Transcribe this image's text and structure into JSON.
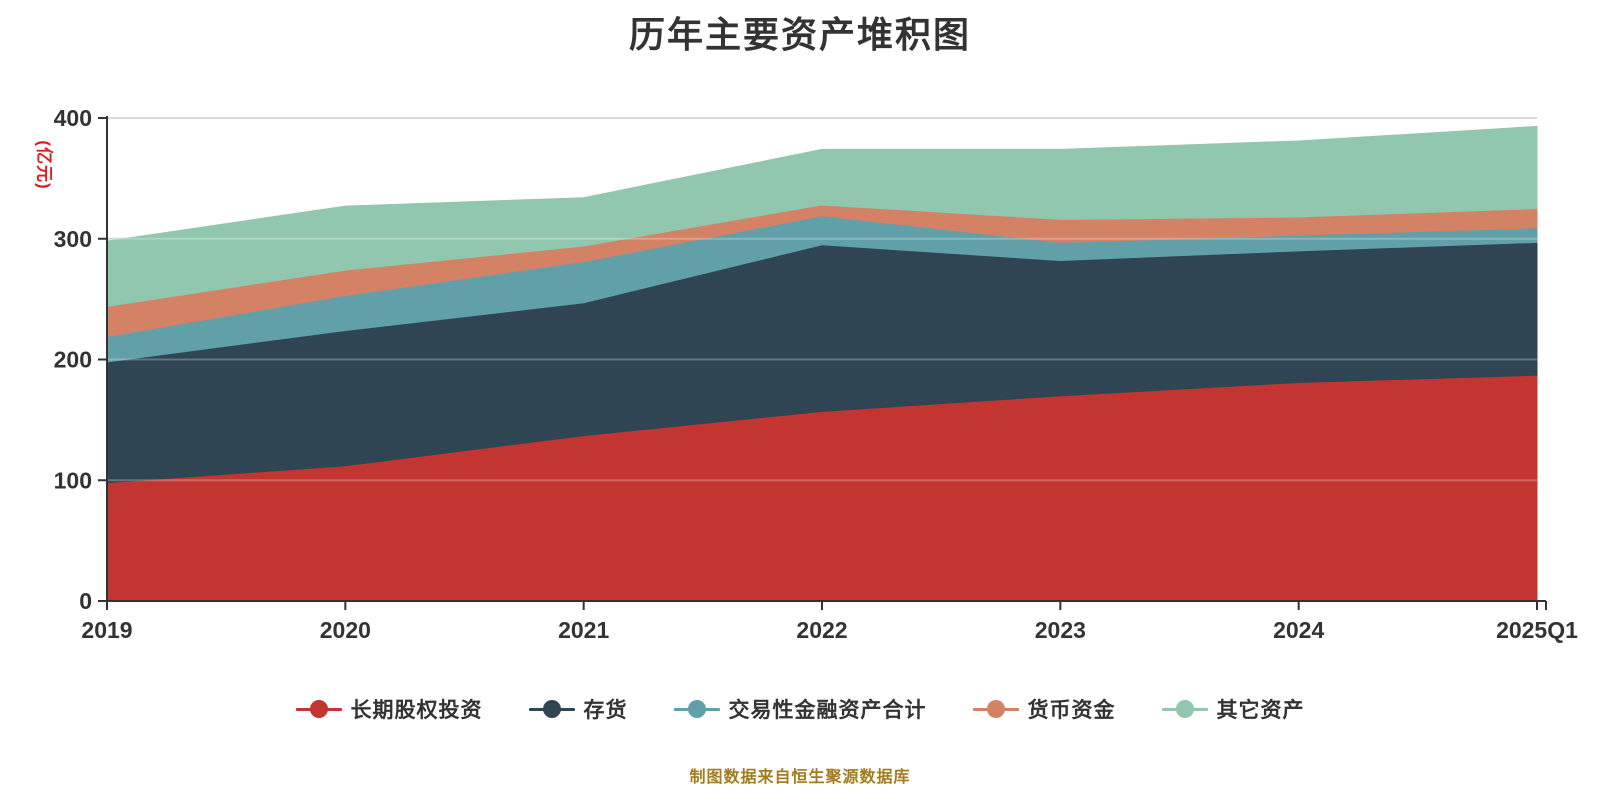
{
  "title": {
    "text": "历年主要资产堆积图"
  },
  "footer": {
    "source_note": "制图数据来自恒生聚源数据库",
    "color": "#a37c1f"
  },
  "chart_data": {
    "type": "area",
    "stacked": true,
    "title": "历年主要资产堆积图",
    "categories": [
      "2019",
      "2020",
      "2021",
      "2022",
      "2023",
      "2024",
      "2025Q1"
    ],
    "series": [
      {
        "name": "长期股权投资",
        "color": "#c23531",
        "values": [
          98,
          112,
          137,
          157,
          170,
          181,
          187
        ]
      },
      {
        "name": "存货",
        "color": "#2f4554",
        "values": [
          100,
          112,
          110,
          138,
          112,
          109,
          110
        ]
      },
      {
        "name": "交易性金融资产合计",
        "color": "#61a0a8",
        "values": [
          21,
          29,
          34,
          24,
          15,
          13,
          12
        ]
      },
      {
        "name": "货币资金",
        "color": "#d48265",
        "values": [
          25,
          21,
          13,
          9,
          19,
          15,
          16
        ]
      },
      {
        "name": "其它资产",
        "color": "#91c7ae",
        "values": [
          54,
          53,
          40,
          46,
          58,
          63,
          68
        ]
      }
    ],
    "xlabel": "",
    "ylabel": "(亿元)",
    "ylabel_color": "#df1c1c",
    "ylim": [
      0,
      400
    ],
    "yticks": [
      0,
      100,
      200,
      300,
      400
    ],
    "grid": true,
    "legend_position": "bottom",
    "axis_color": "#333333",
    "gridline_color": "#cccccc",
    "gridline_overlay_color": "rgba(255,255,255,0.25)"
  }
}
